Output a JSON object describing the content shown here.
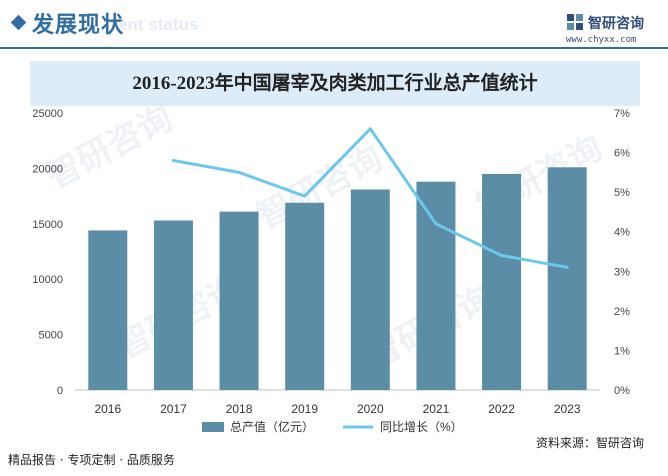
{
  "header": {
    "section_title": "发展现状",
    "section_subtitle": "ent status",
    "brand_name": "智研咨询",
    "brand_url": "www.chyxx.com",
    "logo_icon": "chyxx-logo-icon"
  },
  "watermark_text": "智研咨询",
  "footer": {
    "slogan": "精品报告 · 专项定制 · 品质服务",
    "source": "资料来源：智研咨询"
  },
  "colors": {
    "bar": "#5b8ea6",
    "line": "#6cc7ee",
    "accent": "#2f6da3",
    "title_band": "#dcecf8"
  },
  "chart_data": {
    "type": "bar+line",
    "title": "2016-2023年中国屠宰及肉类加工行业总产值统计",
    "categories": [
      "2016",
      "2017",
      "2018",
      "2019",
      "2020",
      "2021",
      "2022",
      "2023"
    ],
    "series": [
      {
        "name": "总产值（亿元）",
        "type": "bar",
        "axis": "left",
        "values": [
          14400,
          15300,
          16100,
          16900,
          18100,
          18800,
          19500,
          20100
        ]
      },
      {
        "name": "同比增长（%）",
        "type": "line",
        "axis": "right",
        "values": [
          null,
          5.8,
          5.5,
          4.9,
          6.6,
          4.2,
          3.4,
          3.1
        ]
      }
    ],
    "y_left": {
      "min": 0,
      "max": 25000,
      "ticks": [
        "0",
        "5000",
        "10000",
        "15000",
        "20000",
        "25000"
      ]
    },
    "y_right": {
      "min": 0,
      "max": 7,
      "ticks": [
        "0%",
        "1%",
        "2%",
        "3%",
        "4%",
        "5%",
        "6%",
        "7%"
      ]
    },
    "grid": false,
    "legend": "bottom-center"
  }
}
